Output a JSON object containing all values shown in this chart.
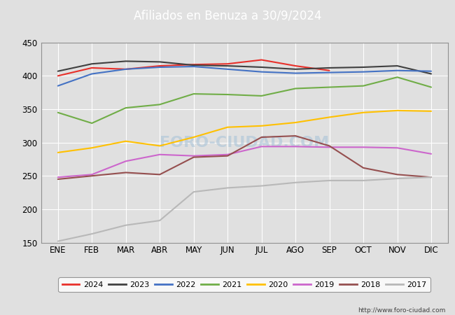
{
  "title": "Afiliados en Benuza a 30/9/2024",
  "ylim": [
    150,
    450
  ],
  "yticks": [
    150,
    200,
    250,
    300,
    350,
    400,
    450
  ],
  "months": [
    "ENE",
    "FEB",
    "MAR",
    "ABR",
    "MAY",
    "JUN",
    "JUL",
    "AGO",
    "SEP",
    "OCT",
    "NOV",
    "DIC"
  ],
  "plot_bg_color": "#e0e0e0",
  "fig_bg_color": "#e0e0e0",
  "title_bg_color": "#4169b0",
  "grid_color": "#ffffff",
  "watermark": "FORO-CIUDAD.COM",
  "url": "http://www.foro-ciudad.com",
  "series": {
    "2024": {
      "color": "#e8302a",
      "data": [
        400,
        412,
        410,
        415,
        417,
        418,
        424,
        415,
        408,
        null,
        null,
        null
      ]
    },
    "2023": {
      "color": "#404040",
      "data": [
        407,
        418,
        422,
        421,
        416,
        415,
        413,
        410,
        412,
        413,
        415,
        403
      ]
    },
    "2022": {
      "color": "#4472c4",
      "data": [
        385,
        403,
        410,
        413,
        414,
        410,
        406,
        404,
        405,
        406,
        408,
        407
      ]
    },
    "2021": {
      "color": "#70ad47",
      "data": [
        345,
        329,
        352,
        357,
        373,
        372,
        370,
        381,
        383,
        385,
        398,
        383
      ]
    },
    "2020": {
      "color": "#ffc000",
      "data": [
        285,
        292,
        302,
        295,
        308,
        323,
        325,
        330,
        338,
        345,
        348,
        347
      ]
    },
    "2019": {
      "color": "#cc66cc",
      "data": [
        248,
        252,
        272,
        282,
        280,
        282,
        294,
        294,
        293,
        293,
        292,
        283
      ]
    },
    "2018": {
      "color": "#954f4f",
      "data": [
        245,
        250,
        255,
        252,
        278,
        280,
        308,
        310,
        295,
        262,
        252,
        248
      ]
    },
    "2017": {
      "color": "#b8b8b8",
      "data": [
        152,
        163,
        176,
        183,
        226,
        232,
        235,
        240,
        243,
        243,
        246,
        248
      ]
    }
  },
  "legend_order": [
    "2024",
    "2023",
    "2022",
    "2021",
    "2020",
    "2019",
    "2018",
    "2017"
  ]
}
